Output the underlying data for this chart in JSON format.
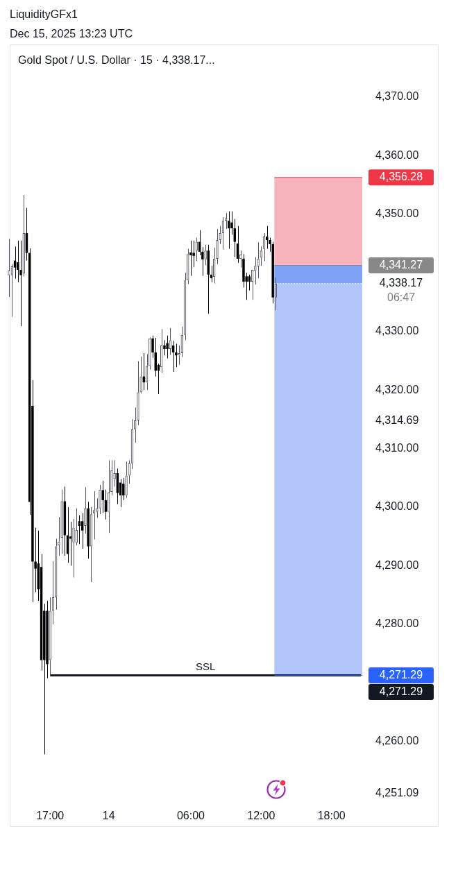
{
  "chart_data": {
    "type": "candlestick",
    "title": "Gold Spot / U.S. Dollar · 15 · 4,338.17...",
    "annotations": [
      "LiquidityGFx1",
      "Dec 15, 2025 13:23 UTC"
    ],
    "categories": [
      null,
      null,
      null,
      null,
      null,
      null,
      null,
      null,
      null,
      null,
      null,
      null,
      null,
      null,
      "17:00",
      null,
      null,
      null,
      null,
      null,
      null,
      null,
      null,
      null,
      null,
      null,
      null,
      null,
      null,
      null,
      null,
      null,
      null,
      null,
      "14",
      null,
      null,
      null,
      null,
      null,
      null,
      null,
      null,
      null,
      null,
      null,
      null,
      null,
      null,
      null,
      null,
      null,
      null,
      null,
      null,
      null,
      null,
      null,
      null,
      null,
      null,
      null,
      "06:00",
      null,
      null,
      null,
      null,
      null,
      null,
      null,
      null,
      null,
      null,
      null,
      null,
      null,
      null,
      null,
      null,
      null,
      null,
      null,
      null,
      null,
      null,
      null,
      "12:00",
      null,
      null,
      null,
      null,
      null,
      null,
      null,
      null,
      null,
      null,
      null,
      null,
      null,
      null,
      null,
      null,
      null,
      null,
      null,
      null,
      null,
      null,
      null,
      "18:00",
      null,
      null,
      null,
      null,
      null,
      null,
      null,
      null,
      null,
      null
    ],
    "colors": [
      "#50535e",
      "#50535e",
      "#000000",
      "#000000",
      "#000000",
      "#50535e",
      "#000000",
      "#000000",
      "#000000",
      "#000000",
      "#000000",
      "#000000",
      "#000000",
      "#000000",
      "#50535e",
      "#50535e",
      "#50535e",
      "#50535e",
      "#50535e",
      "#000000",
      "#000000",
      "#000000",
      "#50535e",
      "#50535e",
      "#000000",
      "#000000",
      "#50535e",
      "#000000",
      "#50535e",
      "#50535e",
      "#50535e",
      "#50535e",
      "#000000",
      "#000000",
      "#50535e",
      "#50535e",
      "#50535e",
      "#000000",
      "#000000",
      "#000000",
      "#50535e",
      "#50535e",
      "#50535e",
      "#50535e",
      "#50535e",
      "#50535e",
      "#000000",
      "#50535e",
      "#50535e",
      "#000000",
      "#000000",
      "#000000",
      "#50535e",
      "#000000",
      "#000000",
      "#50535e",
      "#000000",
      "#000000",
      "#50535e",
      "#50535e",
      "#50535e",
      "#50535e",
      "#000000",
      "#000000",
      "#50535e",
      "#000000",
      "#000000",
      "#50535e",
      "#000000",
      "#000000",
      "#50535e",
      "#50535e",
      "#50535e",
      "#50535e",
      "#50535e",
      "#000000",
      "#000000",
      "#000000",
      "#000000",
      "#50535e",
      "#000000",
      "#000000",
      "#000000",
      "#50535e",
      "#50535e",
      "#50535e",
      "#50535e",
      "#50535e",
      "#000000",
      "#000000",
      "#000000",
      "#50535e",
      null,
      null,
      null,
      null,
      null,
      null,
      null,
      null,
      null,
      null,
      null,
      null,
      null,
      null,
      null,
      null,
      null,
      null,
      null,
      null,
      null,
      null,
      null,
      null,
      null,
      null,
      null,
      null,
      null
    ],
    "ohlc": [
      [
        4339.6,
        4345.8,
        4335.9,
        4340.4
      ],
      [
        4339.6,
        4341.5,
        4332.5,
        4341.1
      ],
      [
        4342.1,
        4344.5,
        4339.0,
        4340.9
      ],
      [
        4341.8,
        4345.5,
        4338.4,
        4340.5
      ],
      [
        4340.5,
        4345.5,
        4330.9,
        4339.6
      ],
      [
        4339.9,
        4353.3,
        4339.4,
        4346.8
      ],
      [
        4346.8,
        4351.1,
        4342.1,
        4343.4
      ],
      [
        4343.4,
        4344.2,
        4298.7,
        4300.9
      ],
      [
        4317.3,
        4321.7,
        4283.8,
        4290.7
      ],
      [
        4290.7,
        4296.5,
        4285.5,
        4289.5
      ],
      [
        4290.4,
        4296.0,
        4284.0,
        4286.0
      ],
      [
        4289.8,
        4292.0,
        4272.1,
        4273.9
      ],
      [
        4282.3,
        4283.5,
        4257.8,
        4273.9
      ],
      [
        4282.3,
        4284.0,
        4270.8,
        4273.2
      ],
      [
        4273.9,
        4284.6,
        4271.29,
        4282.3
      ],
      [
        4282.3,
        4290.8,
        4280.0,
        4284.6
      ],
      [
        4284.6,
        4294.6,
        4282.5,
        4293.3
      ],
      [
        4293.5,
        4298.3,
        4291.7,
        4294.1
      ],
      [
        4294.8,
        4303.0,
        4292.0,
        4301.0
      ],
      [
        4301.0,
        4303.5,
        4291.7,
        4295.2
      ],
      [
        4295.2,
        4300.0,
        4290.5,
        4292.0
      ],
      [
        4295.0,
        4297.5,
        4290.0,
        4294.6
      ],
      [
        4294.0,
        4298.0,
        4288.0,
        4296.5
      ],
      [
        4293.9,
        4299.8,
        4293.5,
        4296.1
      ],
      [
        4297.6,
        4298.6,
        4293.7,
        4296.8
      ],
      [
        4297.6,
        4299.0,
        4292.9,
        4296.0
      ],
      [
        4296.8,
        4303.4,
        4295.5,
        4299.8
      ],
      [
        4299.8,
        4300.9,
        4291.2,
        4293.3
      ],
      [
        4293.3,
        4300.0,
        4287.2,
        4298.8
      ],
      [
        4298.9,
        4302.7,
        4294.5,
        4299.5
      ],
      [
        4299.2,
        4301.5,
        4298.2,
        4299.8
      ],
      [
        4299.8,
        4303.8,
        4298.8,
        4303.0
      ],
      [
        4302.9,
        4304.5,
        4299.0,
        4301.2
      ],
      [
        4301.2,
        4303.0,
        4297.9,
        4299.2
      ],
      [
        4299.2,
        4308.0,
        4295.6,
        4302.5
      ],
      [
        4302.6,
        4308.0,
        4302.0,
        4306.3
      ],
      [
        4304.8,
        4308.0,
        4303.5,
        4305.8
      ],
      [
        4305.8,
        4306.6,
        4300.5,
        4302.4
      ],
      [
        4304.2,
        4304.8,
        4300.0,
        4302.0
      ],
      [
        4304.0,
        4305.0,
        4301.2,
        4302.0
      ],
      [
        4302.0,
        4307.8,
        4301.6,
        4305.4
      ],
      [
        4305.4,
        4308.0,
        4304.0,
        4307.5
      ],
      [
        4307.5,
        4315.0,
        4306.5,
        4313.3
      ],
      [
        4313.3,
        4317.0,
        4311.0,
        4314.8
      ],
      [
        4314.8,
        4324.9,
        4314.0,
        4319.6
      ],
      [
        4319.6,
        4325.7,
        4319.4,
        4322.3
      ],
      [
        4322.3,
        4326.3,
        4320.0,
        4321.3
      ],
      [
        4321.3,
        4326.1,
        4320.0,
        4324.1
      ],
      [
        4324.1,
        4329.0,
        4323.5,
        4328.8
      ],
      [
        4328.8,
        4329.3,
        4325.5,
        4326.4
      ],
      [
        4326.4,
        4328.9,
        4322.3,
        4323.3
      ],
      [
        4324.3,
        4324.5,
        4319.3,
        4323.3
      ],
      [
        4323.9,
        4330.4,
        4322.9,
        4327.6
      ],
      [
        4327.6,
        4328.5,
        4325.9,
        4327.0
      ],
      [
        4328.0,
        4329.3,
        4325.4,
        4327.0
      ],
      [
        4327.0,
        4330.6,
        4326.0,
        4328.5
      ],
      [
        4327.6,
        4328.4,
        4323.1,
        4326.4
      ],
      [
        4326.4,
        4327.9,
        4323.9,
        4325.9
      ],
      [
        4325.9,
        4327.6,
        4324.3,
        4326.3
      ],
      [
        4326.3,
        4330.8,
        4325.6,
        4329.4
      ],
      [
        4329.4,
        4340.0,
        4328.5,
        4338.7
      ],
      [
        4338.7,
        4344.1,
        4338.1,
        4343.2
      ],
      [
        4343.5,
        4345.5,
        4339.5,
        4343.0
      ],
      [
        4343.4,
        4345.5,
        4341.0,
        4342.9
      ],
      [
        4343.8,
        4346.0,
        4342.0,
        4345.3
      ],
      [
        4345.3,
        4347.3,
        4343.0,
        4343.6
      ],
      [
        4343.6,
        4344.4,
        4339.5,
        4342.3
      ],
      [
        4342.3,
        4344.8,
        4341.3,
        4343.8
      ],
      [
        4343.8,
        4344.8,
        4333.0,
        4339.7
      ],
      [
        4339.7,
        4341.2,
        4338.4,
        4339.1
      ],
      [
        4339.3,
        4344.3,
        4338.2,
        4342.4
      ],
      [
        4342.4,
        4347.5,
        4341.5,
        4345.6
      ],
      [
        4345.6,
        4348.0,
        4344.9,
        4346.8
      ],
      [
        4346.8,
        4349.5,
        4344.0,
        4348.9
      ],
      [
        4348.9,
        4350.2,
        4347.5,
        4349.3
      ],
      [
        4348.9,
        4350.5,
        4344.1,
        4347.6
      ],
      [
        4348.6,
        4350.5,
        4346.5,
        4347.6
      ],
      [
        4347.6,
        4349.2,
        4342.7,
        4345.3
      ],
      [
        4345.0,
        4348.0,
        4341.7,
        4342.4
      ],
      [
        4342.4,
        4343.8,
        4340.9,
        4343.1
      ],
      [
        4342.4,
        4343.2,
        4337.5,
        4338.5
      ],
      [
        4339.4,
        4340.0,
        4335.4,
        4338.5
      ],
      [
        4339.4,
        4339.7,
        4337.0,
        4338.5
      ],
      [
        4338.5,
        4340.5,
        4335.4,
        4340.5
      ],
      [
        4340.3,
        4342.7,
        4338.0,
        4341.2
      ],
      [
        4341.1,
        4345.2,
        4339.1,
        4342.4
      ],
      [
        4342.6,
        4344.5,
        4341.2,
        4343.8
      ],
      [
        4344.1,
        4346.8,
        4342.0,
        4346.2
      ],
      [
        4346.2,
        4348.0,
        4344.1,
        4345.6
      ],
      [
        4345.6,
        4346.0,
        4343.6,
        4344.9
      ],
      [
        4344.9,
        4345.3,
        4334.8,
        4335.8
      ],
      [
        4335.8,
        4339.2,
        4333.6,
        4338.17
      ],
      null,
      null,
      null,
      null,
      null,
      null,
      null,
      null,
      null,
      null,
      null,
      null,
      null,
      null,
      null,
      null,
      null,
      null,
      null,
      null,
      null,
      null,
      null,
      null,
      null,
      null,
      null,
      null,
      null
    ],
    "series": [
      {
        "type": "line",
        "name": "SSL",
        "color": "#131722",
        "values": [
          null,
          null,
          null,
          null,
          null,
          null,
          null,
          null,
          null,
          null,
          null,
          null,
          null,
          null,
          4271.29,
          4271.29,
          4271.29,
          4271.29,
          4271.29,
          4271.29,
          4271.29,
          4271.29,
          4271.29,
          4271.29,
          4271.29,
          4271.29,
          4271.29,
          4271.29,
          4271.29,
          4271.29,
          4271.29,
          4271.29,
          4271.29,
          4271.29,
          4271.29,
          4271.29,
          4271.29,
          4271.29,
          4271.29,
          4271.29,
          4271.29,
          4271.29,
          4271.29,
          4271.29,
          4271.29,
          4271.29,
          4271.29,
          4271.29,
          4271.29,
          4271.29,
          4271.29,
          4271.29,
          4271.29,
          4271.29,
          4271.29,
          4271.29,
          4271.29,
          4271.29,
          4271.29,
          4271.29,
          4271.29,
          4271.29,
          4271.29,
          4271.29,
          4271.29,
          4271.29,
          4271.29,
          4271.29,
          4271.29,
          4271.29,
          4271.29,
          4271.29,
          4271.29,
          4271.29,
          4271.29,
          4271.29,
          4271.29,
          4271.29,
          4271.29,
          4271.29,
          4271.29,
          4271.29,
          4271.29,
          4271.29,
          4271.29,
          4271.29,
          4271.29,
          4271.29,
          4271.29,
          4271.29,
          4271.29,
          4271.29,
          4271.29,
          4271.29,
          4271.29,
          4271.29,
          4271.29,
          4271.29,
          4271.29,
          4271.29,
          4271.29,
          4271.29,
          4271.29,
          4271.29,
          4271.29,
          4271.29,
          4271.29,
          4271.29,
          4271.29,
          4271.29,
          4271.29,
          4271.29,
          4271.29,
          4271.29,
          4271.29,
          4271.29,
          4271.29,
          4271.29,
          4271.29,
          4271.29,
          4271.29
        ],
        "value_labels": [
          null,
          null,
          null,
          null,
          null,
          null,
          null,
          null,
          null,
          null,
          null,
          null,
          null,
          null,
          null,
          null,
          null,
          null,
          null,
          null,
          null,
          null,
          null,
          null,
          null,
          null,
          null,
          null,
          null,
          null,
          null,
          null,
          null,
          null,
          null,
          null,
          null,
          null,
          null,
          null,
          null,
          null,
          null,
          null,
          null,
          null,
          null,
          null,
          null,
          null,
          null,
          null,
          null,
          null,
          null,
          null,
          null,
          null,
          null,
          null,
          null,
          null,
          null,
          null,
          null,
          null,
          null,
          null,
          null,
          null,
          null,
          null,
          null,
          null,
          null,
          null,
          null,
          null,
          null,
          null,
          null,
          null,
          null,
          null,
          null,
          null,
          null,
          null,
          null,
          null,
          null,
          null,
          null,
          null,
          null,
          null,
          null,
          null,
          null,
          null,
          null,
          null,
          null,
          null,
          null,
          null,
          null,
          null,
          null,
          null,
          null,
          null,
          null,
          null,
          null,
          null,
          null,
          null,
          null,
          null,
          "4,271.29"
        ]
      }
    ],
    "ylim": [
      4251.09,
      4379
    ],
    "yticks": [
      {
        "value": 4251.09,
        "label": "4,251.09"
      },
      {
        "value": 4260,
        "label": "4,260.00"
      },
      {
        "value": 4280,
        "label": "4,280.00"
      },
      {
        "value": 4290,
        "label": "4,290.00"
      },
      {
        "value": 4300,
        "label": "4,300.00"
      },
      {
        "value": 4310,
        "label": "4,310.00"
      },
      {
        "value": 4314.69,
        "label": "4,314.69"
      },
      {
        "value": 4320,
        "label": "4,320.00"
      },
      {
        "value": 4330,
        "label": "4,330.00"
      },
      {
        "value": 4350,
        "label": "4,350.00"
      },
      {
        "value": 4360,
        "label": "4,360.00"
      },
      {
        "value": 4370,
        "label": "4,370.00"
      }
    ],
    "bands": [
      {
        "axis": "y",
        "from": 4341.27,
        "to": 4356.28,
        "color": "#f8b4bc"
      },
      {
        "axis": "y",
        "from": 4271.29,
        "to": 4341.27,
        "color": "#b2c6fb"
      },
      {
        "axis": "y",
        "from": 4338.17,
        "to": 4341.27,
        "color": "#7ea2f6"
      }
    ],
    "ref_lines": [
      {
        "axis": "y",
        "value": 4356.28,
        "label": "4,356.28",
        "color": "#f23645"
      },
      {
        "axis": "y",
        "value": 4341.27,
        "label": "4,341.27",
        "color": "#888888"
      },
      {
        "axis": "y",
        "value": 4338.17,
        "label": "4,338.17\n06:47",
        "color": "#ffffff",
        "line_style": "dotted"
      },
      {
        "axis": "y",
        "value": 4271.29,
        "label": "4,271.29",
        "color": "#2962ff"
      }
    ]
  }
}
